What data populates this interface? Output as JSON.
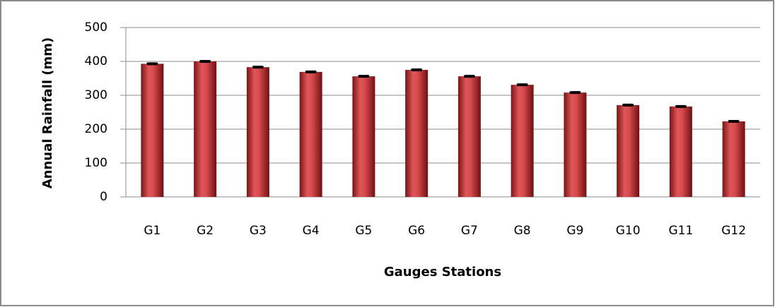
{
  "chart_data": {
    "type": "bar",
    "x_label": "Gauges Stations",
    "y_label": "Annual Rainfall (mm)",
    "categories": [
      "G1",
      "G2",
      "G3",
      "G4",
      "G5",
      "G6",
      "G7",
      "G8",
      "G9",
      "G10",
      "G11",
      "G12"
    ],
    "values": [
      393,
      400,
      383,
      369,
      356,
      375,
      356,
      331,
      308,
      271,
      267,
      223
    ],
    "color": "#c0393b",
    "ylim": [
      0,
      500
    ],
    "yticks": [
      0,
      100,
      200,
      300,
      400,
      500
    ],
    "grid": true
  }
}
